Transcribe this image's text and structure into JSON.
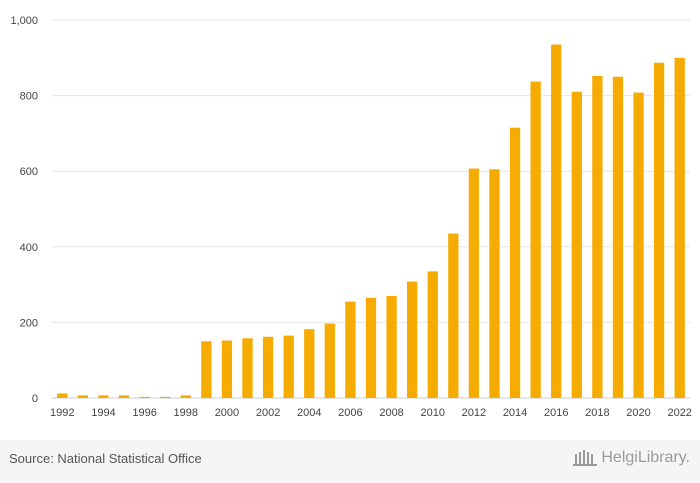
{
  "chart_data": {
    "type": "bar",
    "categories": [
      "1992",
      "1993",
      "1994",
      "1995",
      "1996",
      "1997",
      "1998",
      "1999",
      "2000",
      "2001",
      "2002",
      "2003",
      "2004",
      "2005",
      "2006",
      "2007",
      "2008",
      "2009",
      "2010",
      "2011",
      "2012",
      "2013",
      "2014",
      "2015",
      "2016",
      "2017",
      "2018",
      "2019",
      "2020",
      "2021",
      "2022"
    ],
    "values": [
      12,
      7,
      7,
      7,
      3,
      3,
      7,
      150,
      152,
      158,
      162,
      165,
      182,
      197,
      255,
      265,
      270,
      308,
      335,
      435,
      607,
      605,
      715,
      837,
      935,
      810,
      852,
      850,
      808,
      887,
      900
    ],
    "x_tick_labels": [
      "1992",
      "1994",
      "1996",
      "1998",
      "2000",
      "2002",
      "2004",
      "2006",
      "2008",
      "2010",
      "2012",
      "2014",
      "2016",
      "2018",
      "2020",
      "2022"
    ],
    "y_ticks": [
      "0",
      "200",
      "400",
      "600",
      "800",
      "1,000"
    ],
    "ylim": [
      0,
      1000
    ],
    "grid": true,
    "bar_color": "#f5ab00",
    "title": "",
    "xlabel": "",
    "ylabel": ""
  },
  "footer": {
    "source": "Source: National Statistical Office",
    "brand": "HelgiLibrary."
  }
}
